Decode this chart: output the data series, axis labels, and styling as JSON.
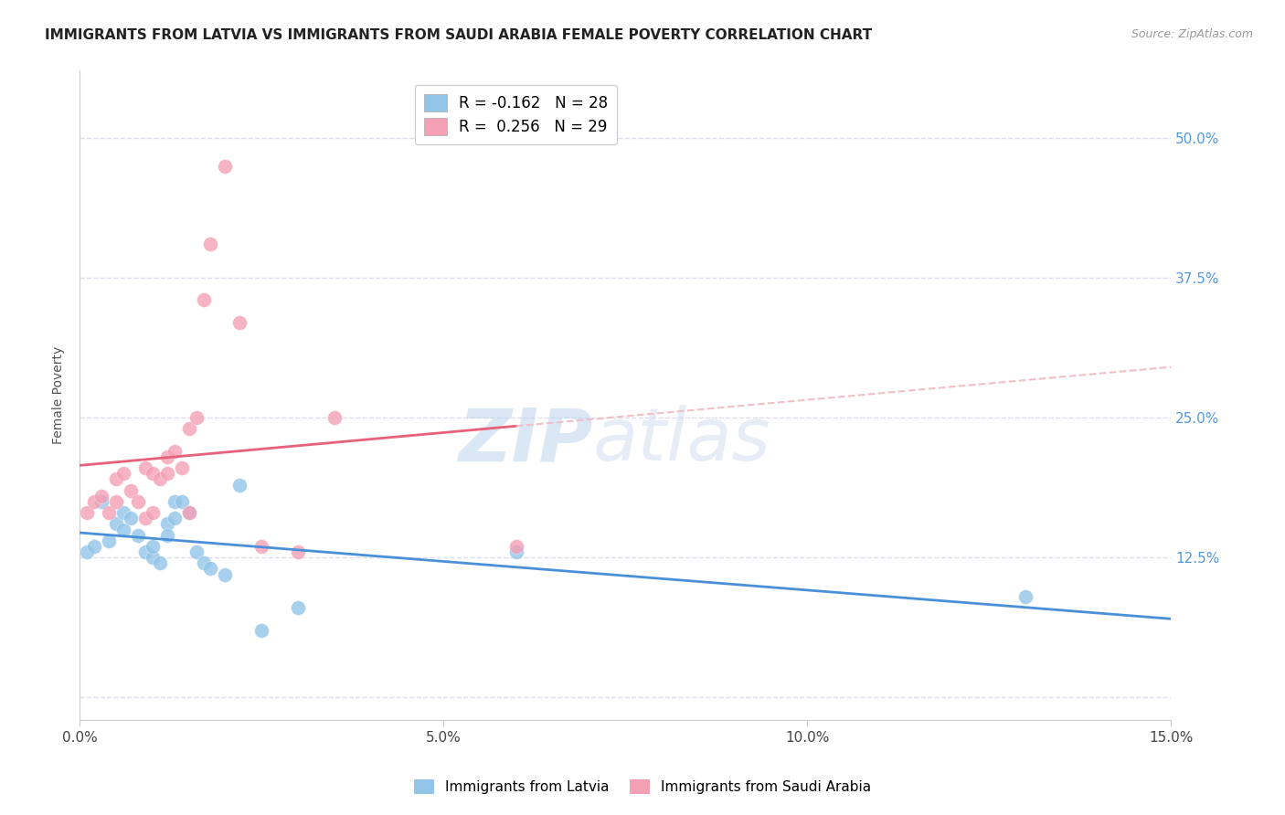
{
  "title": "IMMIGRANTS FROM LATVIA VS IMMIGRANTS FROM SAUDI ARABIA FEMALE POVERTY CORRELATION CHART",
  "source": "Source: ZipAtlas.com",
  "ylabel": "Female Poverty",
  "ytick_values": [
    0,
    0.125,
    0.25,
    0.375,
    0.5
  ],
  "ytick_labels_right": [
    "",
    "12.5%",
    "25.0%",
    "37.5%",
    "50.0%"
  ],
  "xtick_values": [
    0.0,
    0.05,
    0.1,
    0.15
  ],
  "xtick_labels": [
    "0.0%",
    "5.0%",
    "10.0%",
    "15.0%"
  ],
  "xlim": [
    0,
    0.15
  ],
  "ylim": [
    -0.02,
    0.56
  ],
  "legend_label_latvia": "Immigrants from Latvia",
  "legend_label_saudi": "Immigrants from Saudi Arabia",
  "legend_r_latvia": "R = -0.162",
  "legend_n_latvia": "N = 28",
  "legend_r_saudi": "R =  0.256",
  "legend_n_saudi": "N = 29",
  "color_latvia": "#92C5E8",
  "color_saudi": "#F4A0B5",
  "trendline_latvia_color": "#4A90D9",
  "trendline_saudi_color": "#E8607A",
  "dashed_line_color": "#F0C0C8",
  "background_color": "#FFFFFF",
  "grid_color": "#DDDDEE",
  "latvia_x": [
    0.001,
    0.002,
    0.003,
    0.004,
    0.005,
    0.006,
    0.006,
    0.007,
    0.008,
    0.009,
    0.01,
    0.01,
    0.011,
    0.012,
    0.012,
    0.013,
    0.013,
    0.014,
    0.015,
    0.016,
    0.017,
    0.018,
    0.02,
    0.022,
    0.025,
    0.03,
    0.06,
    0.13
  ],
  "latvia_y": [
    0.13,
    0.135,
    0.175,
    0.14,
    0.155,
    0.165,
    0.15,
    0.16,
    0.145,
    0.13,
    0.125,
    0.135,
    0.12,
    0.155,
    0.145,
    0.16,
    0.175,
    0.175,
    0.165,
    0.13,
    0.12,
    0.115,
    0.11,
    0.19,
    0.06,
    0.08,
    0.13,
    0.09
  ],
  "saudi_x": [
    0.001,
    0.002,
    0.003,
    0.004,
    0.005,
    0.005,
    0.006,
    0.007,
    0.008,
    0.009,
    0.009,
    0.01,
    0.01,
    0.011,
    0.012,
    0.012,
    0.013,
    0.014,
    0.015,
    0.015,
    0.016,
    0.017,
    0.018,
    0.02,
    0.022,
    0.025,
    0.03,
    0.035,
    0.06
  ],
  "saudi_y": [
    0.165,
    0.175,
    0.18,
    0.165,
    0.175,
    0.195,
    0.2,
    0.185,
    0.175,
    0.205,
    0.16,
    0.165,
    0.2,
    0.195,
    0.215,
    0.2,
    0.22,
    0.205,
    0.24,
    0.165,
    0.25,
    0.355,
    0.405,
    0.475,
    0.335,
    0.135,
    0.13,
    0.25,
    0.135
  ],
  "watermark_zip": "ZIP",
  "watermark_atlas": "atlas",
  "watermark_color_zip": "#BDD5EE",
  "watermark_color_atlas": "#C8D8EE",
  "watermark_fontsize": 58
}
